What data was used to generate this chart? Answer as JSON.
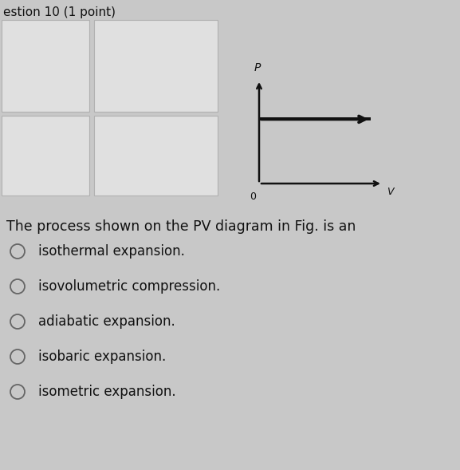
{
  "background_color": "#c8c8c8",
  "panel_color": "#e8e8e8",
  "diagram": {
    "arrow_color": "#111111",
    "line_width": 2.8,
    "axis_lw": 1.8,
    "mutation_scale": 10
  },
  "question": "The process shown on the PV diagram in Fig. is an",
  "question_fontsize": 12.5,
  "options": [
    "isothermal expansion.",
    "isovolumetric compression.",
    "adiabatic expansion.",
    "isobaric expansion.",
    "isometric expansion."
  ],
  "options_fontsize": 12,
  "text_color": "#111111",
  "header_text": "estion 10 (1 point)",
  "header_fontsize": 11
}
